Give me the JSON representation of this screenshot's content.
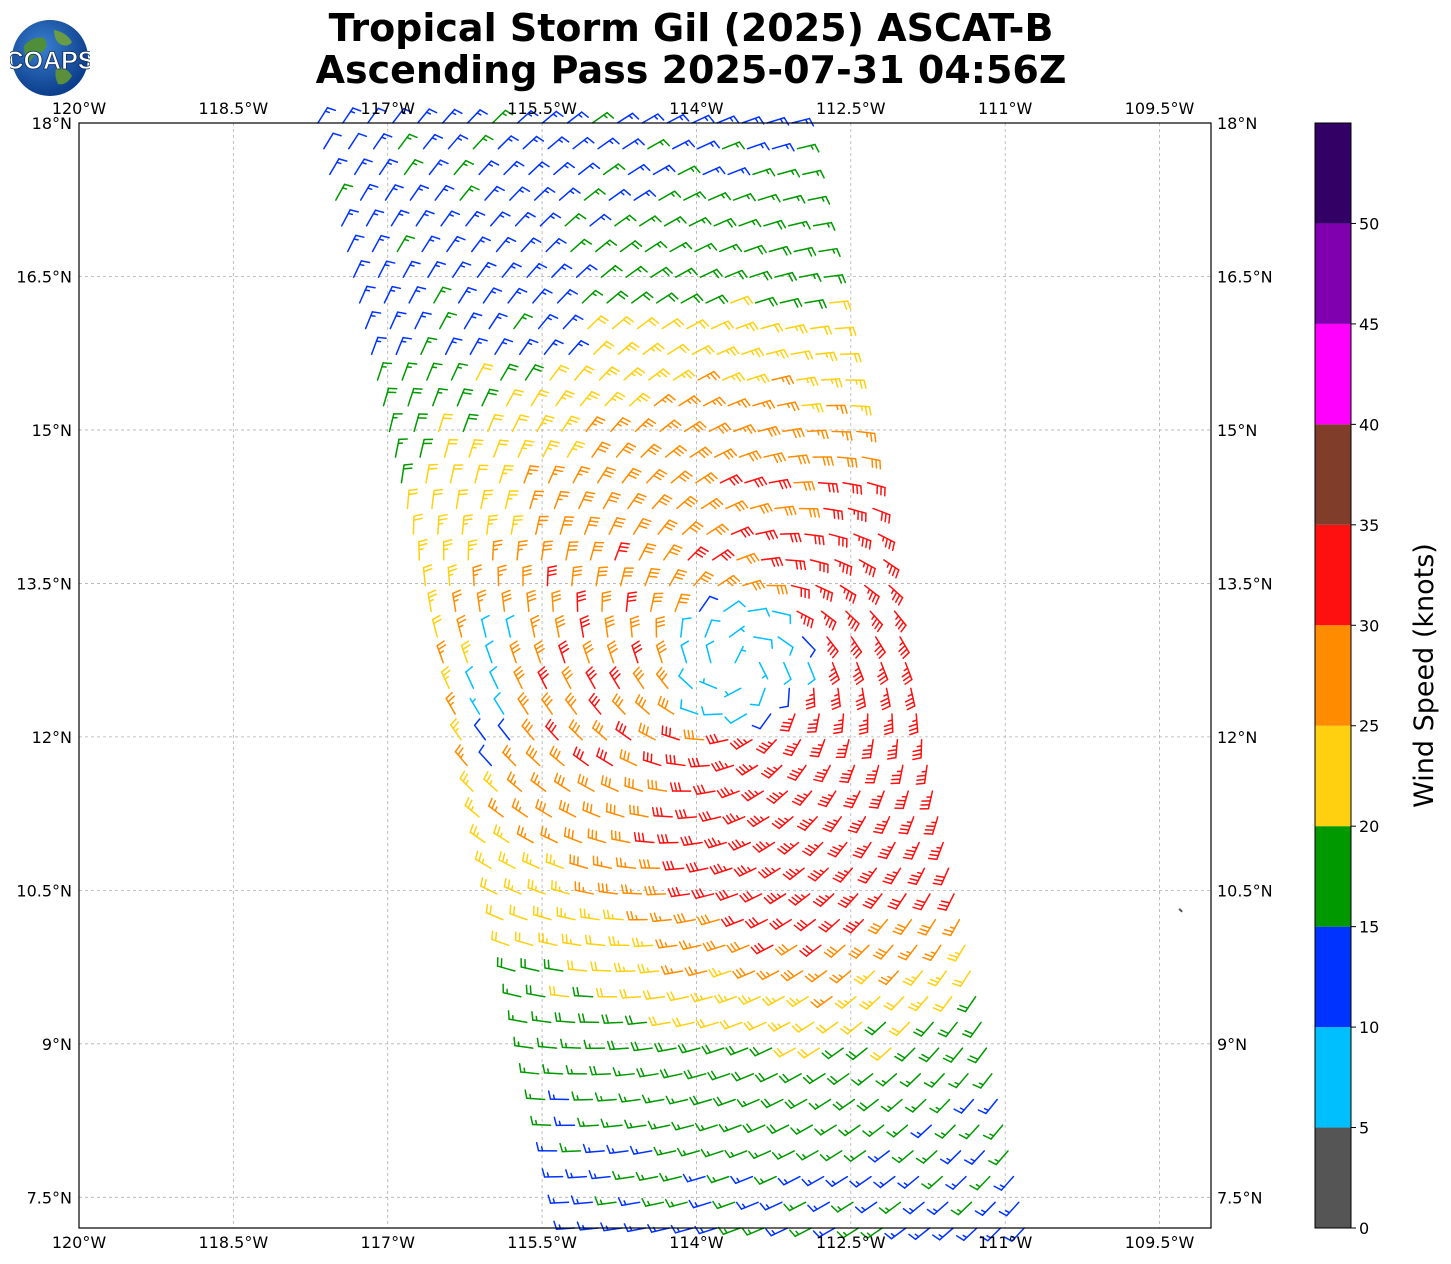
{
  "header": {
    "title_line1": "Tropical Storm Gil (2025) ASCAT-B",
    "title_line2": "Ascending Pass 2025-07-31 04:56Z",
    "logo_text": "COAPS"
  },
  "map": {
    "lon_range": [
      -120.0,
      -109.0
    ],
    "lat_range": [
      7.2,
      18.0
    ],
    "lon_ticks": [
      -120,
      -118.5,
      -117,
      -115.5,
      -114,
      -112.5,
      -111,
      -109.5
    ],
    "lon_tick_labels": [
      "120°W",
      "118.5°W",
      "117°W",
      "115.5°W",
      "114°W",
      "112.5°W",
      "111°W",
      "109.5°W"
    ],
    "lat_ticks": [
      18,
      16.5,
      15,
      13.5,
      12,
      10.5,
      9,
      7.5
    ],
    "lat_tick_labels": [
      "18°N",
      "16.5°N",
      "15°N",
      "13.5°N",
      "12°N",
      "10.5°N",
      "9°N",
      "7.5°N"
    ],
    "grid": true,
    "swath_note_point": {
      "lon": -109.3,
      "lat": 10.3
    }
  },
  "colorbar": {
    "label": "Wind Speed (knots)",
    "tick_labels": [
      "0",
      "5",
      "10",
      "15",
      "20",
      "25",
      "30",
      "35",
      "40",
      "45",
      "50"
    ],
    "bins": [
      {
        "min": 0,
        "max": 5,
        "color": "#555555"
      },
      {
        "min": 5,
        "max": 10,
        "color": "#00bfff"
      },
      {
        "min": 10,
        "max": 15,
        "color": "#0033ff"
      },
      {
        "min": 15,
        "max": 20,
        "color": "#009900"
      },
      {
        "min": 20,
        "max": 25,
        "color": "#ffd00f"
      },
      {
        "min": 25,
        "max": 30,
        "color": "#ff8c00"
      },
      {
        "min": 30,
        "max": 35,
        "color": "#ff1010"
      },
      {
        "min": 35,
        "max": 40,
        "color": "#7f3d2a"
      },
      {
        "min": 40,
        "max": 45,
        "color": "#ff00ff"
      },
      {
        "min": 45,
        "max": 50,
        "color": "#8000b0"
      },
      {
        "min": 50,
        "max": 55,
        "color": "#330066"
      }
    ]
  },
  "chart_data": {
    "type": "wind_barbs",
    "center": {
      "lon": -113.6,
      "lat": 12.7
    },
    "swath": {
      "lat_top": 18.0,
      "lat_bottom": 7.2,
      "west_lon_top": -117.8,
      "east_lon_top": -112.95,
      "west_lon_bottom": -115.3,
      "east_lon_bottom": -110.7
    },
    "rows": 44,
    "cols": 20
  }
}
